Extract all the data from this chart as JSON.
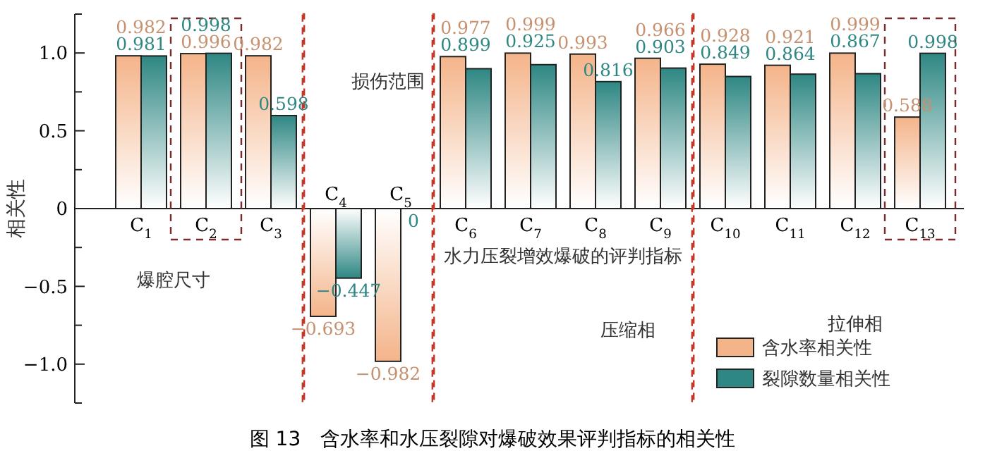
{
  "chart_data": {
    "type": "bar",
    "title": "图 13　含水率和水压裂隙对爆破效果评判指标的相关性",
    "ylabel": "相关性",
    "categories": [
      "C$_{1}$",
      "C$_{2}$",
      "C$_{3}$",
      "C$_{4}$",
      "C$_{5}$",
      "C$_{6}$",
      "C$_{7}$",
      "C$_{8}$",
      "C$_{9}$",
      "C$_{10}$",
      "C$_{11}$",
      "C$_{12}$",
      "C$_{13}$"
    ],
    "series": [
      {
        "name": "含水率相关性",
        "color": "#f4b48a",
        "values": [
          0.982,
          0.996,
          0.982,
          -0.693,
          -0.982,
          0.977,
          0.999,
          0.993,
          0.966,
          0.928,
          0.921,
          0.999,
          0.588
        ]
      },
      {
        "name": "裂隙数量相关性",
        "color": "#2e8783",
        "values": [
          0.981,
          0.998,
          0.598,
          -0.447,
          0,
          0.899,
          0.925,
          0.816,
          0.903,
          0.849,
          0.864,
          0.867,
          0.998
        ]
      }
    ],
    "ylim": [
      -1.25,
      1.25
    ],
    "yticks": [
      {
        "value": -1.25,
        "label": null
      },
      {
        "value": -1,
        "label": "−1.0"
      },
      {
        "value": -0.75,
        "label": null
      },
      {
        "value": -0.5,
        "label": "−0.5"
      },
      {
        "value": -0.25,
        "label": null
      },
      0,
      {
        "value": 0.25,
        "label": null
      },
      {
        "value": 0.5,
        "label": "0.5"
      },
      {
        "value": 0.75,
        "label": null
      },
      {
        "value": 1,
        "label": "1.0"
      },
      {
        "value": 1.25,
        "label": null
      }
    ],
    "data_labels": true,
    "legend": "bottom right",
    "annotations": [
      "损伤范围",
      "爆腔尺寸",
      "水力压裂增效爆破的评判指标",
      "压缩相",
      "拉伸相"
    ]
  }
}
